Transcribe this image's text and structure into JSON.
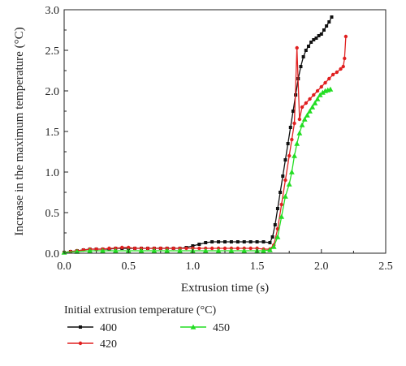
{
  "chart_data": {
    "type": "line",
    "xlabel": "Extrusion time (s)",
    "ylabel": "Increase in the maximum temperature (°C)",
    "xlim": [
      0.0,
      2.5
    ],
    "ylim": [
      0.0,
      3.0
    ],
    "xticks": [
      "0.0",
      "0.5",
      "1.0",
      "1.5",
      "2.0",
      "2.5"
    ],
    "yticks": [
      "0.0",
      "0.5",
      "1.0",
      "1.5",
      "2.0",
      "2.5",
      "3.0"
    ],
    "grid": false,
    "legend": {
      "title": "Initial extrusion temperature (°C)",
      "placement": "bottom",
      "entries": [
        "400",
        "420",
        "450"
      ]
    },
    "series": [
      {
        "name": "400",
        "color": "#111111",
        "marker": "square",
        "x": [
          0.0,
          0.05,
          0.1,
          0.15,
          0.2,
          0.25,
          0.3,
          0.35,
          0.4,
          0.45,
          0.5,
          0.55,
          0.6,
          0.65,
          0.7,
          0.75,
          0.8,
          0.85,
          0.9,
          0.95,
          1.0,
          1.05,
          1.1,
          1.15,
          1.2,
          1.25,
          1.3,
          1.35,
          1.4,
          1.45,
          1.5,
          1.55,
          1.6,
          1.62,
          1.64,
          1.66,
          1.68,
          1.7,
          1.72,
          1.74,
          1.76,
          1.78,
          1.8,
          1.82,
          1.84,
          1.86,
          1.88,
          1.9,
          1.92,
          1.94,
          1.96,
          1.98,
          2.0,
          2.02,
          2.04,
          2.06,
          2.08
        ],
        "y": [
          0.01,
          0.02,
          0.03,
          0.04,
          0.05,
          0.05,
          0.05,
          0.05,
          0.06,
          0.06,
          0.06,
          0.06,
          0.06,
          0.06,
          0.06,
          0.06,
          0.06,
          0.06,
          0.06,
          0.07,
          0.09,
          0.11,
          0.13,
          0.14,
          0.14,
          0.14,
          0.14,
          0.14,
          0.14,
          0.14,
          0.14,
          0.14,
          0.13,
          0.2,
          0.35,
          0.55,
          0.75,
          0.95,
          1.15,
          1.35,
          1.55,
          1.75,
          1.95,
          2.15,
          2.3,
          2.42,
          2.5,
          2.55,
          2.6,
          2.63,
          2.65,
          2.68,
          2.7,
          2.75,
          2.8,
          2.85,
          2.91
        ]
      },
      {
        "name": "420",
        "color": "#e02020",
        "marker": "circle",
        "x": [
          0.0,
          0.05,
          0.1,
          0.15,
          0.2,
          0.25,
          0.3,
          0.35,
          0.4,
          0.45,
          0.5,
          0.55,
          0.6,
          0.65,
          0.7,
          0.75,
          0.8,
          0.85,
          0.9,
          0.95,
          1.0,
          1.05,
          1.1,
          1.15,
          1.2,
          1.25,
          1.3,
          1.35,
          1.4,
          1.45,
          1.5,
          1.55,
          1.6,
          1.63,
          1.66,
          1.69,
          1.72,
          1.75,
          1.77,
          1.79,
          1.81,
          1.83,
          1.85,
          1.88,
          1.91,
          1.94,
          1.97,
          2.0,
          2.03,
          2.06,
          2.09,
          2.12,
          2.15,
          2.17,
          2.18,
          2.19
        ],
        "y": [
          0.01,
          0.02,
          0.03,
          0.04,
          0.05,
          0.05,
          0.05,
          0.06,
          0.06,
          0.07,
          0.07,
          0.06,
          0.06,
          0.06,
          0.06,
          0.06,
          0.06,
          0.06,
          0.06,
          0.06,
          0.06,
          0.06,
          0.06,
          0.06,
          0.06,
          0.06,
          0.06,
          0.06,
          0.06,
          0.06,
          0.06,
          0.05,
          0.05,
          0.1,
          0.3,
          0.6,
          0.9,
          1.2,
          1.4,
          1.6,
          2.53,
          1.65,
          1.8,
          1.85,
          1.9,
          1.95,
          2.0,
          2.05,
          2.1,
          2.15,
          2.2,
          2.23,
          2.27,
          2.3,
          2.4,
          2.67
        ]
      },
      {
        "name": "450",
        "color": "#22dd22",
        "marker": "triangle",
        "x": [
          0.0,
          0.1,
          0.2,
          0.3,
          0.4,
          0.5,
          0.6,
          0.7,
          0.8,
          0.9,
          1.0,
          1.1,
          1.2,
          1.3,
          1.4,
          1.5,
          1.55,
          1.6,
          1.63,
          1.66,
          1.69,
          1.72,
          1.75,
          1.77,
          1.79,
          1.81,
          1.83,
          1.85,
          1.87,
          1.89,
          1.91,
          1.93,
          1.95,
          1.97,
          1.99,
          2.01,
          2.03,
          2.05,
          2.07
        ],
        "y": [
          0.01,
          0.02,
          0.03,
          0.03,
          0.03,
          0.03,
          0.03,
          0.03,
          0.03,
          0.03,
          0.03,
          0.03,
          0.03,
          0.03,
          0.03,
          0.03,
          0.03,
          0.04,
          0.08,
          0.2,
          0.45,
          0.7,
          0.85,
          1.0,
          1.2,
          1.35,
          1.48,
          1.58,
          1.65,
          1.7,
          1.75,
          1.8,
          1.85,
          1.9,
          1.95,
          1.98,
          2.0,
          2.01,
          2.02
        ]
      }
    ]
  }
}
